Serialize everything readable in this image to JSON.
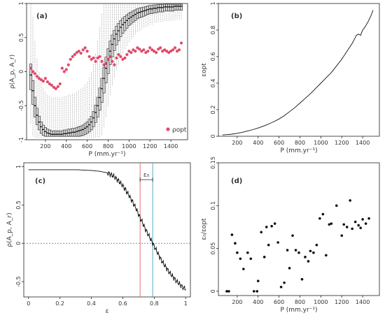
{
  "chart_data": [
    {
      "panel": "(a)",
      "type": "box",
      "xlabel": "P (mm.yr⁻¹)",
      "ylabel": "ρ(A_p, A_r)",
      "xlim": [
        20,
        1560
      ],
      "ylim": [
        -1.0,
        1.0
      ],
      "xticks": [
        200,
        400,
        600,
        800,
        1000,
        1200,
        1400
      ],
      "yticks": [
        -1.0,
        -0.5,
        0.0,
        0.5,
        1.0
      ],
      "legend": {
        "label": "ρopt",
        "position": "bottom-right"
      },
      "x": [
        60,
        80,
        100,
        120,
        140,
        160,
        180,
        200,
        220,
        240,
        260,
        280,
        300,
        320,
        340,
        360,
        380,
        400,
        420,
        440,
        460,
        480,
        500,
        520,
        540,
        560,
        580,
        600,
        620,
        640,
        660,
        680,
        700,
        720,
        740,
        760,
        780,
        800,
        820,
        840,
        860,
        880,
        900,
        920,
        940,
        960,
        980,
        1000,
        1020,
        1040,
        1060,
        1080,
        1100,
        1120,
        1140,
        1160,
        1180,
        1200,
        1220,
        1240,
        1260,
        1280,
        1300,
        1320,
        1340,
        1360,
        1380,
        1400,
        1420,
        1440,
        1460,
        1480,
        1500
      ],
      "median": [
        -0.05,
        -0.28,
        -0.5,
        -0.64,
        -0.74,
        -0.81,
        -0.85,
        -0.88,
        -0.9,
        -0.91,
        -0.92,
        -0.92,
        -0.92,
        -0.92,
        -0.92,
        -0.92,
        -0.91,
        -0.91,
        -0.9,
        -0.9,
        -0.89,
        -0.89,
        -0.88,
        -0.87,
        -0.86,
        -0.85,
        -0.83,
        -0.81,
        -0.78,
        -0.74,
        -0.68,
        -0.6,
        -0.5,
        -0.38,
        -0.25,
        -0.1,
        0.05,
        0.18,
        0.3,
        0.4,
        0.48,
        0.55,
        0.6,
        0.65,
        0.69,
        0.72,
        0.75,
        0.78,
        0.8,
        0.82,
        0.84,
        0.86,
        0.87,
        0.88,
        0.89,
        0.9,
        0.91,
        0.92,
        0.92,
        0.93,
        0.93,
        0.94,
        0.94,
        0.94,
        0.95,
        0.95,
        0.95,
        0.95,
        0.95,
        0.96,
        0.96,
        0.96,
        0.96
      ],
      "rho_opt": [
        0.05,
        0.0,
        -0.03,
        -0.07,
        -0.1,
        -0.12,
        -0.14,
        -0.1,
        -0.15,
        -0.18,
        -0.2,
        -0.23,
        -0.25,
        -0.22,
        -0.18,
        0.05,
        0.0,
        0.03,
        0.1,
        0.18,
        0.22,
        0.25,
        0.28,
        0.3,
        0.27,
        0.32,
        0.35,
        0.3,
        0.22,
        0.18,
        0.2,
        0.15,
        0.2,
        0.22,
        0.15,
        0.1,
        0.12,
        0.18,
        0.22,
        0.15,
        0.1,
        0.2,
        0.25,
        0.22,
        0.18,
        0.2,
        0.25,
        0.3,
        0.28,
        0.32,
        0.3,
        0.35,
        0.33,
        0.3,
        0.32,
        0.28,
        0.3,
        0.35,
        0.32,
        0.3,
        0.28,
        0.33,
        0.35,
        0.3,
        0.32,
        0.3,
        0.28,
        0.3,
        0.32,
        0.35,
        0.3,
        0.32,
        0.42
      ]
    },
    {
      "panel": "(b)",
      "type": "line",
      "xlabel": "P (mm.yr⁻¹)",
      "ylabel": "εopt",
      "xlim": [
        20,
        1560
      ],
      "ylim": [
        0,
        1.0
      ],
      "xticks": [
        200,
        400,
        600,
        800,
        1000,
        1200,
        1400
      ],
      "yticks": [
        0.0,
        0.2,
        0.4,
        0.6,
        0.8,
        1.0
      ],
      "x": [
        60,
        100,
        150,
        200,
        250,
        300,
        350,
        400,
        450,
        500,
        550,
        600,
        650,
        700,
        750,
        800,
        850,
        900,
        950,
        1000,
        1050,
        1100,
        1150,
        1200,
        1250,
        1300,
        1320,
        1340,
        1360,
        1380,
        1400,
        1420,
        1450,
        1480,
        1500
      ],
      "y": [
        0.01,
        0.012,
        0.016,
        0.022,
        0.03,
        0.04,
        0.05,
        0.062,
        0.076,
        0.092,
        0.11,
        0.13,
        0.155,
        0.185,
        0.215,
        0.25,
        0.285,
        0.32,
        0.36,
        0.4,
        0.44,
        0.48,
        0.53,
        0.58,
        0.64,
        0.7,
        0.73,
        0.76,
        0.77,
        0.76,
        0.8,
        0.82,
        0.86,
        0.91,
        0.95
      ]
    },
    {
      "panel": "(c)",
      "type": "line",
      "xlabel": "ε",
      "ylabel": "ρ(A_p, A_r)",
      "xlim": [
        -0.03,
        1.03
      ],
      "ylim": [
        -0.7,
        1.05
      ],
      "xticks": [
        0.0,
        0.2,
        0.4,
        0.6,
        0.8,
        1.0
      ],
      "yticks": [
        -0.5,
        0.0,
        0.5,
        1.0
      ],
      "annotation": "ε₀",
      "vlines": [
        {
          "x": 0.71,
          "color": "#e8707a"
        },
        {
          "x": 0.79,
          "color": "#5aa8c8"
        }
      ],
      "hline": 0.0,
      "x": [
        0.0,
        0.05,
        0.1,
        0.15,
        0.2,
        0.25,
        0.3,
        0.35,
        0.4,
        0.45,
        0.5,
        0.52,
        0.54,
        0.56,
        0.58,
        0.6,
        0.62,
        0.64,
        0.66,
        0.68,
        0.7,
        0.72,
        0.74,
        0.76,
        0.78,
        0.8,
        0.82,
        0.84,
        0.86,
        0.88,
        0.9,
        0.92,
        0.94,
        0.96,
        0.98,
        1.0
      ],
      "y": [
        0.96,
        0.96,
        0.96,
        0.96,
        0.96,
        0.96,
        0.96,
        0.955,
        0.95,
        0.94,
        0.92,
        0.9,
        0.88,
        0.84,
        0.8,
        0.75,
        0.69,
        0.62,
        0.55,
        0.47,
        0.38,
        0.29,
        0.2,
        0.12,
        0.04,
        -0.04,
        -0.12,
        -0.2,
        -0.27,
        -0.33,
        -0.39,
        -0.44,
        -0.49,
        -0.53,
        -0.57,
        -0.6
      ]
    },
    {
      "panel": "(d)",
      "type": "scatter",
      "xlabel": "P (mm.yr⁻¹)",
      "ylabel": "ε₀/εopt",
      "xlim": [
        20,
        1560
      ],
      "ylim": [
        -0.005,
        0.15
      ],
      "xticks": [
        200,
        400,
        600,
        800,
        1000,
        1200,
        1400
      ],
      "yticks": [
        0.0,
        0.05,
        0.1,
        0.15
      ],
      "x": [
        100,
        120,
        150,
        180,
        200,
        230,
        260,
        300,
        330,
        360,
        390,
        400,
        430,
        460,
        480,
        500,
        530,
        560,
        590,
        620,
        650,
        680,
        700,
        730,
        760,
        790,
        820,
        850,
        880,
        900,
        930,
        960,
        990,
        1020,
        1050,
        1080,
        1100,
        1150,
        1200,
        1220,
        1250,
        1280,
        1300,
        1330,
        1360,
        1380,
        1400,
        1430,
        1460
      ],
      "y": [
        0.0,
        0.0,
        0.066,
        0.056,
        0.045,
        0.038,
        0.026,
        0.045,
        0.038,
        0.0,
        0.0,
        0.012,
        0.069,
        0.04,
        0.075,
        0.054,
        0.076,
        0.079,
        0.057,
        0.005,
        0.01,
        0.048,
        0.027,
        0.065,
        0.048,
        0.045,
        0.014,
        0.04,
        0.035,
        0.047,
        0.045,
        0.054,
        0.085,
        0.09,
        0.042,
        0.078,
        0.079,
        0.1,
        0.065,
        0.078,
        0.075,
        0.106,
        0.073,
        0.081,
        0.077,
        0.074,
        0.084,
        0.079,
        0.085
      ]
    }
  ]
}
